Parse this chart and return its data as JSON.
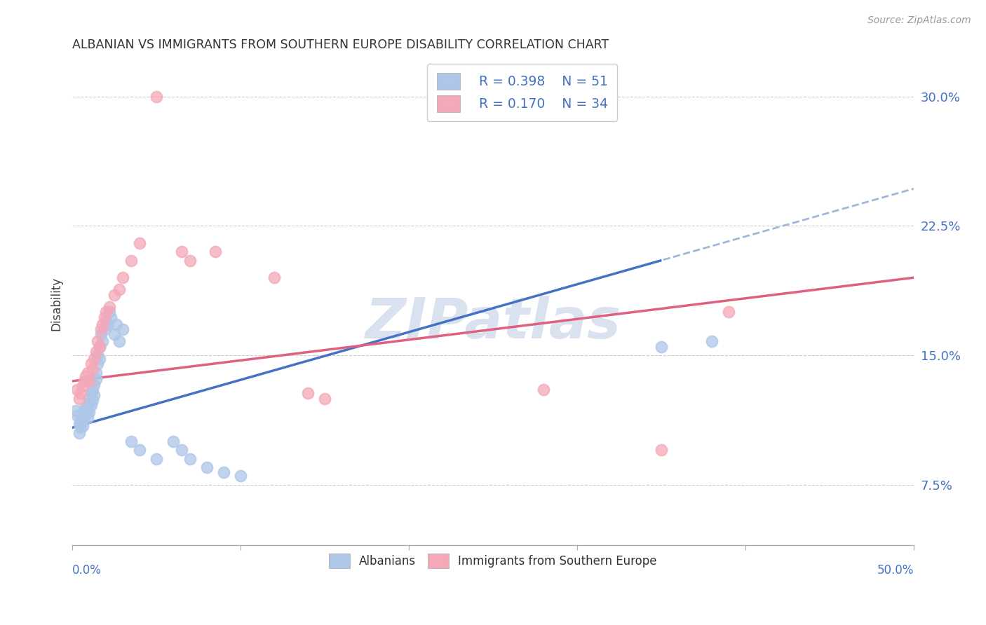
{
  "title": "ALBANIAN VS IMMIGRANTS FROM SOUTHERN EUROPE DISABILITY CORRELATION CHART",
  "source": "Source: ZipAtlas.com",
  "ylabel": "Disability",
  "ytick_labels": [
    "7.5%",
    "15.0%",
    "22.5%",
    "30.0%"
  ],
  "ytick_values": [
    0.075,
    0.15,
    0.225,
    0.3
  ],
  "xlim": [
    0.0,
    0.5
  ],
  "ylim": [
    0.04,
    0.32
  ],
  "legend_r1": "R = 0.398",
  "legend_n1": "N = 51",
  "legend_r2": "R = 0.170",
  "legend_n2": "N = 34",
  "color_albanian": "#aec6e8",
  "color_immigrant": "#f4a8b8",
  "color_line_albanian": "#4472c4",
  "color_line_immigrant": "#e06080",
  "color_dashed": "#a0b8d8",
  "albanian_x": [
    0.002,
    0.003,
    0.004,
    0.004,
    0.005,
    0.005,
    0.006,
    0.006,
    0.007,
    0.007,
    0.008,
    0.008,
    0.009,
    0.009,
    0.01,
    0.01,
    0.01,
    0.011,
    0.011,
    0.012,
    0.012,
    0.013,
    0.013,
    0.014,
    0.014,
    0.015,
    0.015,
    0.016,
    0.016,
    0.017,
    0.018,
    0.019,
    0.02,
    0.021,
    0.022,
    0.023,
    0.025,
    0.026,
    0.028,
    0.03,
    0.035,
    0.04,
    0.05,
    0.06,
    0.065,
    0.07,
    0.08,
    0.09,
    0.1,
    0.35,
    0.38
  ],
  "albanian_y": [
    0.118,
    0.115,
    0.11,
    0.105,
    0.112,
    0.108,
    0.113,
    0.109,
    0.115,
    0.118,
    0.12,
    0.116,
    0.119,
    0.114,
    0.122,
    0.117,
    0.125,
    0.121,
    0.128,
    0.124,
    0.13,
    0.127,
    0.133,
    0.14,
    0.136,
    0.145,
    0.15,
    0.148,
    0.155,
    0.162,
    0.158,
    0.165,
    0.17,
    0.168,
    0.175,
    0.172,
    0.162,
    0.168,
    0.158,
    0.165,
    0.1,
    0.095,
    0.09,
    0.1,
    0.095,
    0.09,
    0.085,
    0.082,
    0.08,
    0.155,
    0.158
  ],
  "immigrant_x": [
    0.003,
    0.004,
    0.005,
    0.006,
    0.007,
    0.008,
    0.009,
    0.01,
    0.011,
    0.012,
    0.013,
    0.014,
    0.015,
    0.016,
    0.017,
    0.018,
    0.019,
    0.02,
    0.022,
    0.025,
    0.028,
    0.03,
    0.035,
    0.04,
    0.05,
    0.065,
    0.07,
    0.085,
    0.12,
    0.14,
    0.15,
    0.28,
    0.35,
    0.39
  ],
  "immigrant_y": [
    0.13,
    0.125,
    0.128,
    0.132,
    0.135,
    0.138,
    0.14,
    0.135,
    0.145,
    0.142,
    0.148,
    0.152,
    0.158,
    0.155,
    0.165,
    0.168,
    0.172,
    0.175,
    0.178,
    0.185,
    0.188,
    0.195,
    0.205,
    0.215,
    0.3,
    0.21,
    0.205,
    0.21,
    0.195,
    0.128,
    0.125,
    0.13,
    0.095,
    0.175
  ],
  "grid_color": "#cccccc",
  "background_color": "#ffffff",
  "watermark": "ZIPatlas",
  "watermark_color": "#c0d0e4"
}
